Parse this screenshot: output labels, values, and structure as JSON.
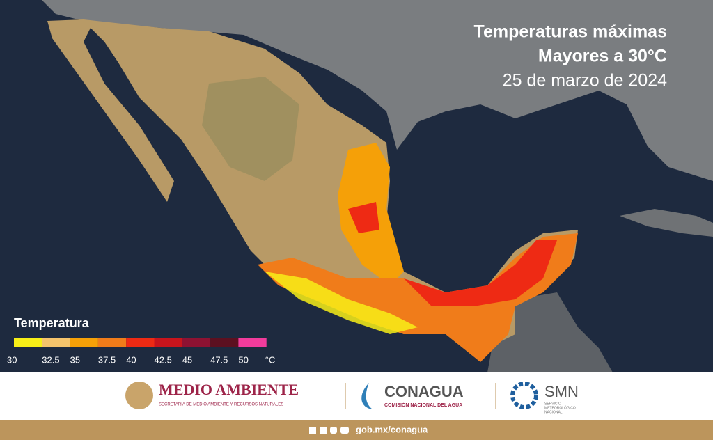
{
  "header": {
    "title": "Temperaturas máximas",
    "subtitle": "Mayores a 30°C",
    "date": "25 de marzo de 2024"
  },
  "legend": {
    "title": "Temperatura",
    "ticks": [
      30,
      32.5,
      35,
      37.5,
      40,
      42.5,
      45,
      47.5,
      50
    ],
    "unit": "°C",
    "colors": [
      "#f8ef18",
      "#f5c46c",
      "#f5a008",
      "#f07c1a",
      "#ee2a14",
      "#c8141c",
      "#8e1232",
      "#5c1020",
      "#f23c9c"
    ]
  },
  "footer": {
    "semarnat": {
      "name": "MEDIO AMBIENTE",
      "sub": "SECRETARÍA DE MEDIO AMBIENTE Y RECURSOS NATURALES"
    },
    "conagua": {
      "name": "CONAGUA",
      "sub": "COMISIÓN NACIONAL DEL AGUA"
    },
    "smn": {
      "name": "SMN",
      "sub": [
        "SERVICIO",
        "METEOROLÓGICO",
        "NACIONAL"
      ]
    },
    "url": "gob.mx/conagua"
  }
}
